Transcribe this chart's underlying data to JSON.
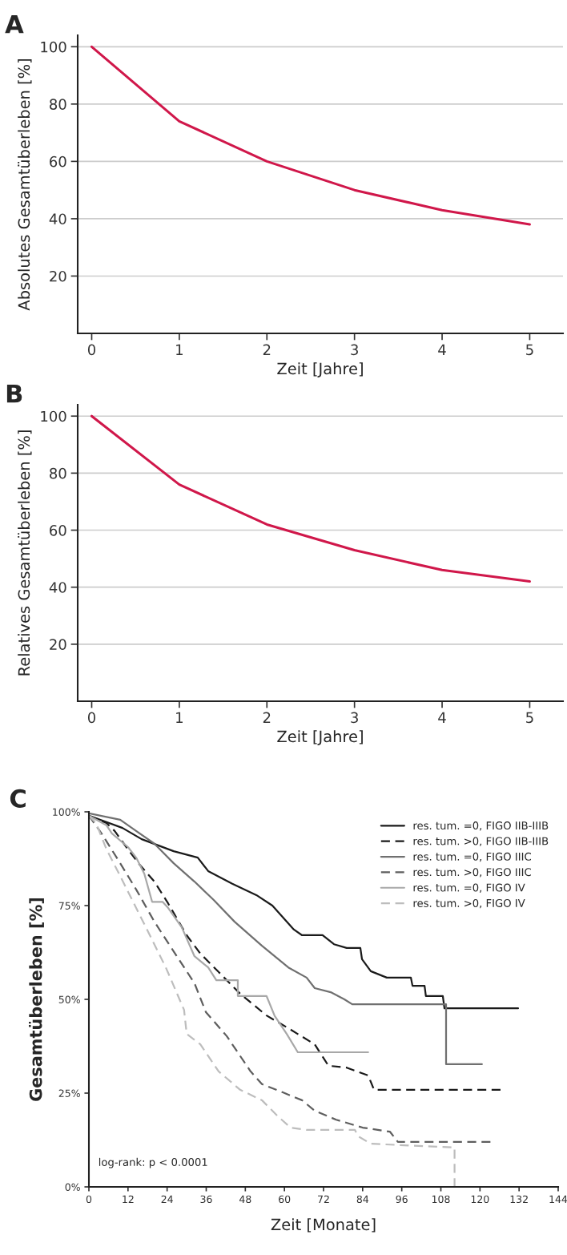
{
  "chart_data": [
    {
      "type": "line",
      "title": "A",
      "ylabel": "Absolutes Gesamtüberleben [%]",
      "xlabel": "Zeit [Jahre]",
      "x": [
        0,
        1,
        2,
        3,
        4,
        5
      ],
      "series": [
        {
          "color": "#d0174a",
          "values": [
            100,
            74,
            60,
            50,
            43,
            38
          ]
        }
      ],
      "xlim": [
        -0.16,
        5.38
      ],
      "xticks": [
        0,
        1,
        2,
        3,
        4,
        5
      ],
      "ylim": [
        0,
        104
      ],
      "yticks": [
        20,
        40,
        60,
        80,
        100
      ],
      "grid": "y",
      "marker": "none",
      "line_style": "solid"
    },
    {
      "type": "line",
      "title": "B",
      "ylabel": "Relatives Gesamtüberleben [%]",
      "xlabel": "Zeit [Jahre]",
      "x": [
        0,
        1,
        2,
        3,
        4,
        5
      ],
      "series": [
        {
          "color": "#d0174a",
          "values": [
            100,
            76,
            62,
            53,
            46,
            42
          ]
        }
      ],
      "xlim": [
        -0.16,
        5.38
      ],
      "xticks": [
        0,
        1,
        2,
        3,
        4,
        5
      ],
      "ylim": [
        0,
        104
      ],
      "yticks": [
        20,
        40,
        60,
        80,
        100
      ],
      "grid": "y",
      "marker": "none",
      "line_style": "solid"
    },
    {
      "type": "line",
      "title": "C",
      "ylabel": "Gesamtüberleben [%]",
      "xlabel": "Zeit [Monate]",
      "legend": "top right",
      "grid": false,
      "marker": "none",
      "annotations": [
        "log-rank: p < 0.0001"
      ],
      "series": [
        {
          "name": "res. tum. =0, FIGO IIB-IIIB",
          "color": "#1a1a1a",
          "line_style": "solid",
          "x": [
            0,
            10.3,
            16.2,
            26,
            33.4,
            36.6,
            44,
            51.4,
            56.3,
            62.9,
            65.4,
            71.7,
            75.2,
            79.1,
            83.3,
            83.8,
            86.5,
            91.4,
            98.8,
            99.3,
            103,
            103.4,
            108.6,
            109.1,
            131.7
          ],
          "values": [
            99,
            95.7,
            92.7,
            89.5,
            87.8,
            84.2,
            80.8,
            77.8,
            75,
            68.6,
            67.1,
            67.1,
            64.7,
            63.7,
            63.7,
            60.7,
            57.5,
            55.8,
            55.8,
            53.6,
            53.6,
            50.9,
            50.9,
            47.6,
            47.6
          ]
        },
        {
          "name": "res. tum. >0, FIGO IIB-IIIB",
          "color": "#1a1a1a",
          "line_style": "dashed",
          "x": [
            0,
            5.4,
            7.9,
            12,
            15.2,
            20.1,
            24.3,
            30,
            34.2,
            39.8,
            46.4,
            54.5,
            61.2,
            69.3,
            73.5,
            79.1,
            85.7,
            87.5,
            126.8
          ],
          "values": [
            99,
            97,
            94.9,
            90,
            86.3,
            81.4,
            75.6,
            67.1,
            62.2,
            57.3,
            51.5,
            45.7,
            42.3,
            38,
            32.3,
            31.8,
            29.7,
            25.9,
            25.9
          ]
        },
        {
          "name": "res. tum. =0, FIGO IIIC",
          "color": "#707070",
          "line_style": "solid",
          "x": [
            0,
            9.6,
            14.5,
            20.1,
            26,
            32.4,
            38.3,
            44.7,
            53.1,
            61.2,
            66.8,
            69.3,
            74.2,
            78.4,
            80.8,
            109.6,
            109.6,
            120.6
          ],
          "values": [
            99.6,
            97.9,
            94.9,
            91.5,
            86.3,
            81.4,
            76.5,
            70.7,
            64.3,
            58.5,
            55.8,
            53,
            51.9,
            50,
            48.7,
            48.7,
            32.7,
            32.7
          ]
        },
        {
          "name": "res. tum. >0, FIGO IIIC",
          "color": "#5e5e5e",
          "line_style": "dashed",
          "x": [
            0,
            3.9,
            9.6,
            14.5,
            20.1,
            26,
            32.4,
            35.9,
            42.3,
            49.6,
            53.1,
            59.5,
            65.4,
            69.3,
            75.9,
            84,
            92.4,
            94.8,
            123.3
          ],
          "values": [
            99,
            94.2,
            86.3,
            79.3,
            70.7,
            62.8,
            54.3,
            46.6,
            40.2,
            30.8,
            27.4,
            25.2,
            23.1,
            20.3,
            17.9,
            15.8,
            14.7,
            12,
            12
          ]
        },
        {
          "name": "res. tum. =0, FIGO IV",
          "color": "#a8a8a8",
          "line_style": "solid",
          "x": [
            0,
            5.4,
            7.1,
            12,
            14.5,
            17,
            19.4,
            22.6,
            24.3,
            28.5,
            32.4,
            36.6,
            39.1,
            45.7,
            45.7,
            54.5,
            57,
            60.7,
            64.1,
            85.7
          ],
          "values": [
            99,
            96.4,
            94.2,
            90.6,
            87.8,
            83.5,
            76,
            76,
            74.4,
            69.2,
            61.5,
            58.5,
            55.1,
            55.1,
            50.9,
            50.9,
            45.6,
            40.8,
            35.9,
            35.9
          ]
        },
        {
          "name": "res. tum. >0, FIGO IV",
          "color": "#bdbdbd",
          "line_style": "dashed",
          "x": [
            0,
            2.2,
            5.4,
            9.6,
            13.8,
            18.7,
            23.6,
            29.2,
            30,
            34.2,
            39.8,
            46.4,
            53.1,
            58,
            61.9,
            66.8,
            81.6,
            82.6,
            86.5,
            112.2,
            112.2
          ],
          "values": [
            99,
            97,
            90,
            82.9,
            75.6,
            67.1,
            58.5,
            47.2,
            40.8,
            38,
            30.8,
            25.9,
            23.1,
            18.8,
            15.8,
            15.2,
            15.2,
            13.5,
            11.5,
            10.5,
            0
          ]
        }
      ],
      "xlim": [
        0,
        144
      ],
      "xticks": [
        0,
        12,
        24,
        36,
        48,
        60,
        72,
        84,
        96,
        108,
        120,
        132,
        144
      ],
      "ylim": [
        0,
        100
      ],
      "yticks": [
        {
          "value": 0,
          "label": "0%"
        },
        {
          "value": 25,
          "label": "25%"
        },
        {
          "value": 50,
          "label": "50%"
        },
        {
          "value": 75,
          "label": "75%"
        },
        {
          "value": 100,
          "label": "100%"
        }
      ]
    }
  ]
}
